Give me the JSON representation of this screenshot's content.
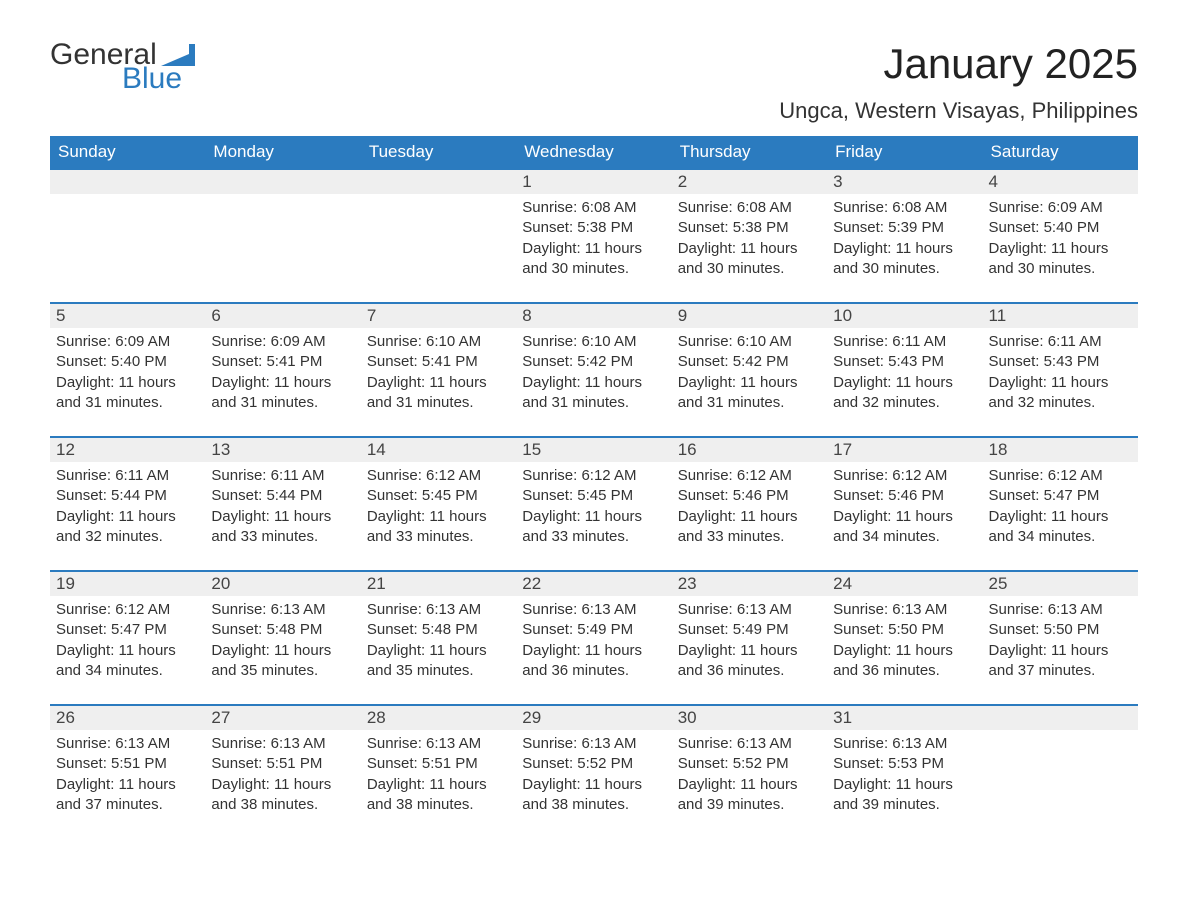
{
  "logo": {
    "text_a": "General",
    "text_b": "Blue",
    "flag_color": "#2b7bbf"
  },
  "title": "January 2025",
  "location": "Ungca, Western Visayas, Philippines",
  "colors": {
    "header_bg": "#2b7bbf",
    "header_text": "#ffffff",
    "row_accent": "#2b7bbf",
    "daynum_bg": "#efefef",
    "body_text": "#333333",
    "page_bg": "#ffffff"
  },
  "weekdays": [
    "Sunday",
    "Monday",
    "Tuesday",
    "Wednesday",
    "Thursday",
    "Friday",
    "Saturday"
  ],
  "weeks": [
    [
      null,
      null,
      null,
      {
        "n": "1",
        "sr": "6:08 AM",
        "ss": "5:38 PM",
        "dl": "11 hours and 30 minutes."
      },
      {
        "n": "2",
        "sr": "6:08 AM",
        "ss": "5:38 PM",
        "dl": "11 hours and 30 minutes."
      },
      {
        "n": "3",
        "sr": "6:08 AM",
        "ss": "5:39 PM",
        "dl": "11 hours and 30 minutes."
      },
      {
        "n": "4",
        "sr": "6:09 AM",
        "ss": "5:40 PM",
        "dl": "11 hours and 30 minutes."
      }
    ],
    [
      {
        "n": "5",
        "sr": "6:09 AM",
        "ss": "5:40 PM",
        "dl": "11 hours and 31 minutes."
      },
      {
        "n": "6",
        "sr": "6:09 AM",
        "ss": "5:41 PM",
        "dl": "11 hours and 31 minutes."
      },
      {
        "n": "7",
        "sr": "6:10 AM",
        "ss": "5:41 PM",
        "dl": "11 hours and 31 minutes."
      },
      {
        "n": "8",
        "sr": "6:10 AM",
        "ss": "5:42 PM",
        "dl": "11 hours and 31 minutes."
      },
      {
        "n": "9",
        "sr": "6:10 AM",
        "ss": "5:42 PM",
        "dl": "11 hours and 31 minutes."
      },
      {
        "n": "10",
        "sr": "6:11 AM",
        "ss": "5:43 PM",
        "dl": "11 hours and 32 minutes."
      },
      {
        "n": "11",
        "sr": "6:11 AM",
        "ss": "5:43 PM",
        "dl": "11 hours and 32 minutes."
      }
    ],
    [
      {
        "n": "12",
        "sr": "6:11 AM",
        "ss": "5:44 PM",
        "dl": "11 hours and 32 minutes."
      },
      {
        "n": "13",
        "sr": "6:11 AM",
        "ss": "5:44 PM",
        "dl": "11 hours and 33 minutes."
      },
      {
        "n": "14",
        "sr": "6:12 AM",
        "ss": "5:45 PM",
        "dl": "11 hours and 33 minutes."
      },
      {
        "n": "15",
        "sr": "6:12 AM",
        "ss": "5:45 PM",
        "dl": "11 hours and 33 minutes."
      },
      {
        "n": "16",
        "sr": "6:12 AM",
        "ss": "5:46 PM",
        "dl": "11 hours and 33 minutes."
      },
      {
        "n": "17",
        "sr": "6:12 AM",
        "ss": "5:46 PM",
        "dl": "11 hours and 34 minutes."
      },
      {
        "n": "18",
        "sr": "6:12 AM",
        "ss": "5:47 PM",
        "dl": "11 hours and 34 minutes."
      }
    ],
    [
      {
        "n": "19",
        "sr": "6:12 AM",
        "ss": "5:47 PM",
        "dl": "11 hours and 34 minutes."
      },
      {
        "n": "20",
        "sr": "6:13 AM",
        "ss": "5:48 PM",
        "dl": "11 hours and 35 minutes."
      },
      {
        "n": "21",
        "sr": "6:13 AM",
        "ss": "5:48 PM",
        "dl": "11 hours and 35 minutes."
      },
      {
        "n": "22",
        "sr": "6:13 AM",
        "ss": "5:49 PM",
        "dl": "11 hours and 36 minutes."
      },
      {
        "n": "23",
        "sr": "6:13 AM",
        "ss": "5:49 PM",
        "dl": "11 hours and 36 minutes."
      },
      {
        "n": "24",
        "sr": "6:13 AM",
        "ss": "5:50 PM",
        "dl": "11 hours and 36 minutes."
      },
      {
        "n": "25",
        "sr": "6:13 AM",
        "ss": "5:50 PM",
        "dl": "11 hours and 37 minutes."
      }
    ],
    [
      {
        "n": "26",
        "sr": "6:13 AM",
        "ss": "5:51 PM",
        "dl": "11 hours and 37 minutes."
      },
      {
        "n": "27",
        "sr": "6:13 AM",
        "ss": "5:51 PM",
        "dl": "11 hours and 38 minutes."
      },
      {
        "n": "28",
        "sr": "6:13 AM",
        "ss": "5:51 PM",
        "dl": "11 hours and 38 minutes."
      },
      {
        "n": "29",
        "sr": "6:13 AM",
        "ss": "5:52 PM",
        "dl": "11 hours and 38 minutes."
      },
      {
        "n": "30",
        "sr": "6:13 AM",
        "ss": "5:52 PM",
        "dl": "11 hours and 39 minutes."
      },
      {
        "n": "31",
        "sr": "6:13 AM",
        "ss": "5:53 PM",
        "dl": "11 hours and 39 minutes."
      },
      null
    ]
  ],
  "labels": {
    "sunrise": "Sunrise:",
    "sunset": "Sunset:",
    "daylight": "Daylight:"
  }
}
